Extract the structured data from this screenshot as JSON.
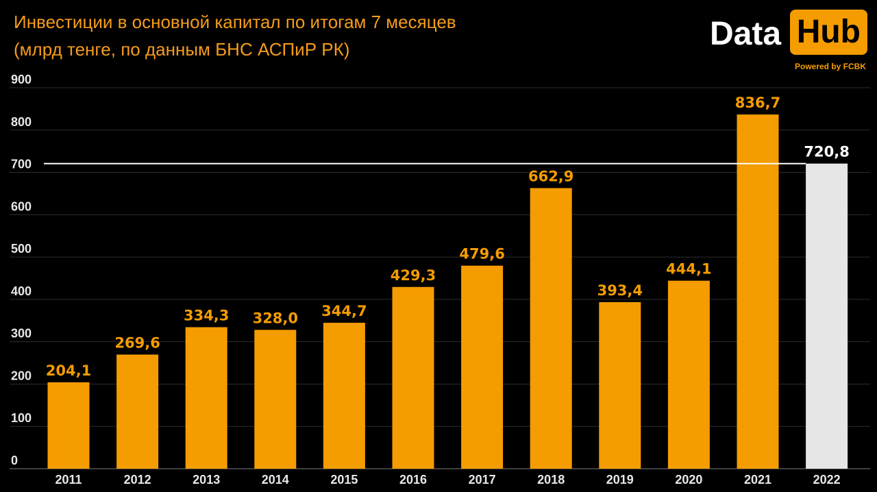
{
  "header": {
    "title": "Инвестиции в основной капитал по итогам 7 месяцев",
    "subtitle": "(млрд тенге, по данным БНС АСПиР РК)"
  },
  "logo": {
    "word1": "Data",
    "word2": "Hub",
    "tagline": "Powered by FCBK"
  },
  "colors": {
    "background": "#000000",
    "accent": "#f59c00",
    "highlight_bar": "#e6e6e6",
    "grid": "#2e2e2e",
    "reference_line": "#ffffff"
  },
  "chart_data": {
    "type": "bar",
    "title": "Инвестиции в основной капитал по итогам 7 месяцев",
    "subtitle": "(млрд тенге, по данным БНС АСПиР РК)",
    "xlabel": "",
    "ylabel": "",
    "categories": [
      "2011",
      "2012",
      "2013",
      "2014",
      "2015",
      "2016",
      "2017",
      "2018",
      "2019",
      "2020",
      "2021",
      "2022"
    ],
    "values": [
      204.1,
      269.6,
      334.3,
      328.0,
      344.7,
      429.3,
      479.6,
      662.9,
      393.4,
      444.1,
      836.7,
      720.8
    ],
    "value_labels": [
      "204,1",
      "269,6",
      "334,3",
      "328,0",
      "344,7",
      "429,3",
      "479,6",
      "662,9",
      "393,4",
      "444,1",
      "836,7",
      "720,8"
    ],
    "highlight_index": 11,
    "reference_line_value": 720.8,
    "ylim": [
      0,
      900
    ],
    "yticks": [
      "0",
      "100",
      "200",
      "300",
      "400",
      "500",
      "600",
      "700",
      "800",
      "900"
    ],
    "grid": true,
    "legend": "none"
  }
}
